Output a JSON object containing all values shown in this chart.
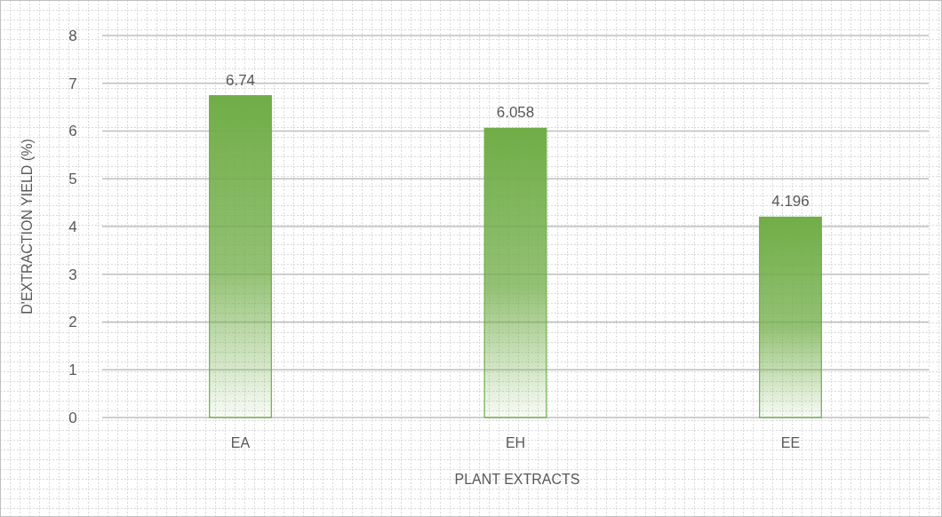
{
  "chart_data": {
    "type": "bar",
    "xlabel": "PLANT EXTRACTS",
    "ylabel": "D'EXTRACTION YIELD (%)",
    "categories": [
      "EA",
      "EH",
      "EE"
    ],
    "values": [
      6.74,
      6.058,
      4.196
    ],
    "color": "#70ad47",
    "ylim": [
      0,
      8
    ],
    "yticks": [
      0,
      1,
      2,
      3,
      4,
      5,
      6,
      7,
      8
    ],
    "grid": "y",
    "data_labels": true
  }
}
